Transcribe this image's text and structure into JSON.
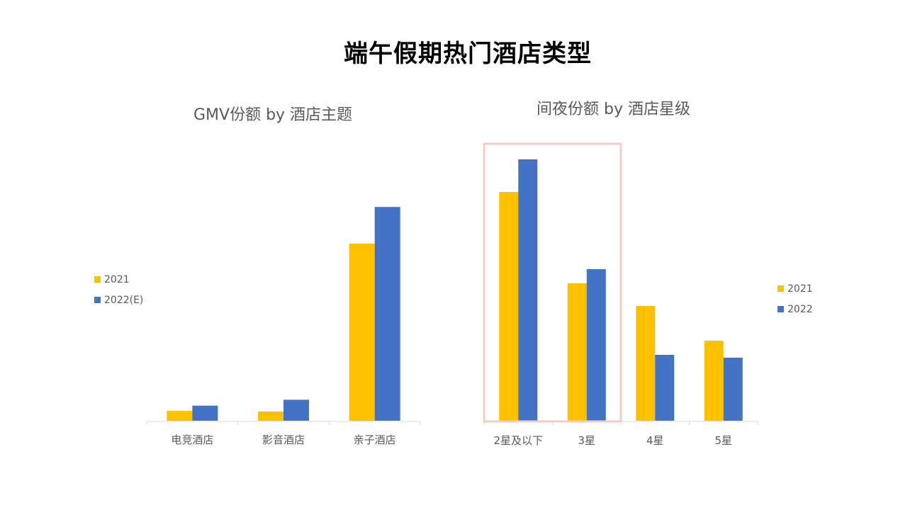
{
  "title": "端午假期热门酒店类型",
  "colors": {
    "series_2021": "#FFC000",
    "series_2022": "#4472C4",
    "axis": "#D9D9D9",
    "highlight_box": "#F4CCC3"
  },
  "chart_data": [
    {
      "type": "bar",
      "title": "GMV份额 by 酒店主题",
      "categories": [
        "电竞酒店",
        "影音酒店",
        "亲子酒店"
      ],
      "series": [
        {
          "name": "2021",
          "values": [
            1.5,
            1.4,
            27
          ]
        },
        {
          "name": "2022(E)",
          "values": [
            2.3,
            3.2,
            32.6
          ]
        }
      ],
      "ylim": [
        0,
        35
      ],
      "grid": false,
      "legend": "left"
    },
    {
      "type": "bar",
      "title": "间夜份额 by 酒店星级",
      "categories": [
        "2星及以下",
        "3星",
        "4星",
        "5星"
      ],
      "series": [
        {
          "name": "2021",
          "values": [
            32.3,
            19.4,
            16.2,
            11.3
          ]
        },
        {
          "name": "2022",
          "values": [
            36.9,
            21.4,
            9.3,
            8.9
          ]
        }
      ],
      "ylim": [
        0,
        40
      ],
      "grid": false,
      "legend": "right",
      "highlighted_categories": [
        "2星及以下",
        "3星"
      ]
    }
  ]
}
